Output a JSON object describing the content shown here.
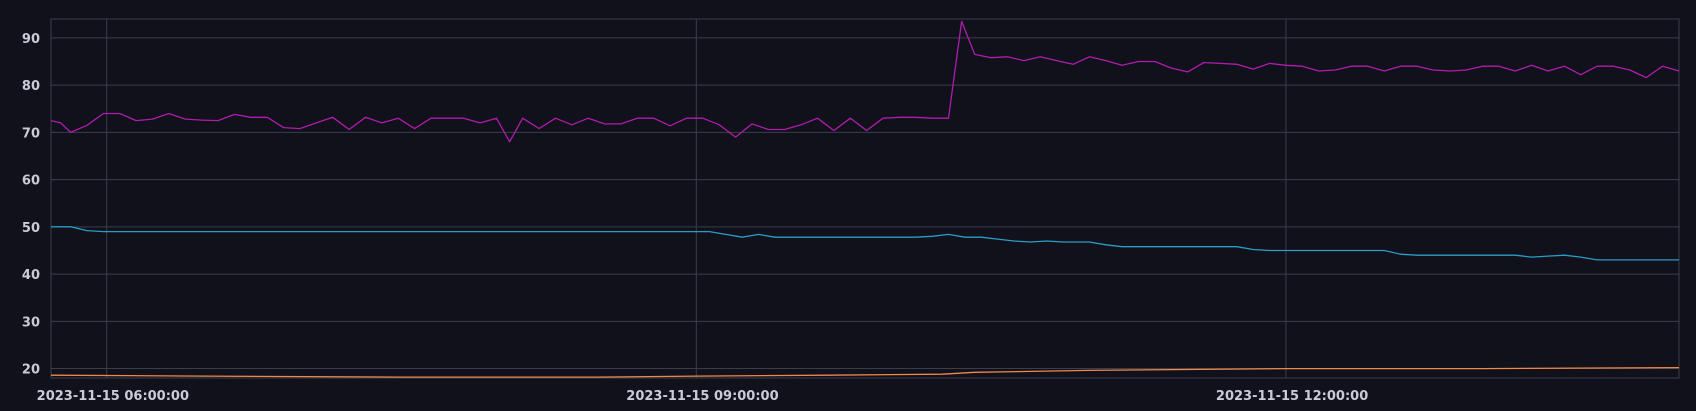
{
  "chart_data": {
    "type": "line",
    "title": "",
    "xlabel": "",
    "ylabel": "",
    "x_ticks": [
      "2023-11-15 06:00:00",
      "2023-11-15 09:00:00",
      "2023-11-15 12:00:00"
    ],
    "x_tick_times": [
      "2023-11-15T06:00:00",
      "2023-11-15T09:00:00",
      "2023-11-15T12:00:00"
    ],
    "x_range": [
      "2023-11-15T05:43:00",
      "2023-11-15T14:00:00"
    ],
    "y_ticks": [
      20,
      30,
      40,
      50,
      60,
      70,
      80,
      90
    ],
    "ylim": [
      18,
      94
    ],
    "grid": true,
    "legend": "none",
    "colors": [
      "#b01cae",
      "#2b9bc8",
      "#f0884a"
    ],
    "series": [
      {
        "color": "#b01cae",
        "points": [
          [
            "2023-11-15T05:43:00",
            72.5
          ],
          [
            "2023-11-15T05:46:00",
            72.0
          ],
          [
            "2023-11-15T05:49:00",
            70.0
          ],
          [
            "2023-11-15T05:54:00",
            71.5
          ],
          [
            "2023-11-15T05:59:00",
            74.0
          ],
          [
            "2023-11-15T06:04:00",
            74.0
          ],
          [
            "2023-11-15T06:09:00",
            72.5
          ],
          [
            "2023-11-15T06:14:00",
            72.8
          ],
          [
            "2023-11-15T06:19:00",
            74.0
          ],
          [
            "2023-11-15T06:24:00",
            72.8
          ],
          [
            "2023-11-15T06:29:00",
            72.6
          ],
          [
            "2023-11-15T06:34:00",
            72.5
          ],
          [
            "2023-11-15T06:39:00",
            73.8
          ],
          [
            "2023-11-15T06:44:00",
            73.2
          ],
          [
            "2023-11-15T06:49:00",
            73.2
          ],
          [
            "2023-11-15T06:54:00",
            71.0
          ],
          [
            "2023-11-15T06:59:00",
            70.8
          ],
          [
            "2023-11-15T07:04:00",
            72.0
          ],
          [
            "2023-11-15T07:09:00",
            73.2
          ],
          [
            "2023-11-15T07:14:00",
            70.6
          ],
          [
            "2023-11-15T07:19:00",
            73.2
          ],
          [
            "2023-11-15T07:24:00",
            72.0
          ],
          [
            "2023-11-15T07:29:00",
            73.0
          ],
          [
            "2023-11-15T07:34:00",
            70.8
          ],
          [
            "2023-11-15T07:39:00",
            73.0
          ],
          [
            "2023-11-15T07:44:00",
            73.0
          ],
          [
            "2023-11-15T07:49:00",
            73.0
          ],
          [
            "2023-11-15T07:54:00",
            72.0
          ],
          [
            "2023-11-15T07:59:00",
            73.0
          ],
          [
            "2023-11-15T08:03:00",
            68.0
          ],
          [
            "2023-11-15T08:07:00",
            73.0
          ],
          [
            "2023-11-15T08:12:00",
            70.8
          ],
          [
            "2023-11-15T08:17:00",
            73.0
          ],
          [
            "2023-11-15T08:22:00",
            71.6
          ],
          [
            "2023-11-15T08:27:00",
            73.0
          ],
          [
            "2023-11-15T08:32:00",
            71.8
          ],
          [
            "2023-11-15T08:37:00",
            71.8
          ],
          [
            "2023-11-15T08:42:00",
            73.0
          ],
          [
            "2023-11-15T08:47:00",
            73.0
          ],
          [
            "2023-11-15T08:52:00",
            71.4
          ],
          [
            "2023-11-15T08:57:00",
            73.0
          ],
          [
            "2023-11-15T09:02:00",
            73.0
          ],
          [
            "2023-11-15T09:07:00",
            71.6
          ],
          [
            "2023-11-15T09:12:00",
            69.0
          ],
          [
            "2023-11-15T09:17:00",
            71.8
          ],
          [
            "2023-11-15T09:22:00",
            70.6
          ],
          [
            "2023-11-15T09:27:00",
            70.6
          ],
          [
            "2023-11-15T09:32:00",
            71.6
          ],
          [
            "2023-11-15T09:37:00",
            73.0
          ],
          [
            "2023-11-15T09:42:00",
            70.4
          ],
          [
            "2023-11-15T09:47:00",
            73.0
          ],
          [
            "2023-11-15T09:52:00",
            70.4
          ],
          [
            "2023-11-15T09:57:00",
            73.0
          ],
          [
            "2023-11-15T10:02:00",
            73.2
          ],
          [
            "2023-11-15T10:07:00",
            73.2
          ],
          [
            "2023-11-15T10:12:00",
            73.0
          ],
          [
            "2023-11-15T10:17:00",
            73.0
          ],
          [
            "2023-11-15T10:21:00",
            93.5
          ],
          [
            "2023-11-15T10:25:00",
            86.5
          ],
          [
            "2023-11-15T10:30:00",
            85.8
          ],
          [
            "2023-11-15T10:35:00",
            86.0
          ],
          [
            "2023-11-15T10:40:00",
            85.2
          ],
          [
            "2023-11-15T10:45:00",
            86.0
          ],
          [
            "2023-11-15T10:50:00",
            85.2
          ],
          [
            "2023-11-15T10:55:00",
            84.4
          ],
          [
            "2023-11-15T11:00:00",
            86.0
          ],
          [
            "2023-11-15T11:05:00",
            85.2
          ],
          [
            "2023-11-15T11:10:00",
            84.2
          ],
          [
            "2023-11-15T11:15:00",
            85.0
          ],
          [
            "2023-11-15T11:20:00",
            85.0
          ],
          [
            "2023-11-15T11:25:00",
            83.6
          ],
          [
            "2023-11-15T11:30:00",
            82.8
          ],
          [
            "2023-11-15T11:35:00",
            84.8
          ],
          [
            "2023-11-15T11:40:00",
            84.6
          ],
          [
            "2023-11-15T11:45:00",
            84.4
          ],
          [
            "2023-11-15T11:50:00",
            83.4
          ],
          [
            "2023-11-15T11:55:00",
            84.6
          ],
          [
            "2023-11-15T12:00:00",
            84.2
          ],
          [
            "2023-11-15T12:05:00",
            84.0
          ],
          [
            "2023-11-15T12:10:00",
            83.0
          ],
          [
            "2023-11-15T12:15:00",
            83.2
          ],
          [
            "2023-11-15T12:20:00",
            84.0
          ],
          [
            "2023-11-15T12:25:00",
            84.0
          ],
          [
            "2023-11-15T12:30:00",
            83.0
          ],
          [
            "2023-11-15T12:35:00",
            84.0
          ],
          [
            "2023-11-15T12:40:00",
            84.0
          ],
          [
            "2023-11-15T12:45:00",
            83.2
          ],
          [
            "2023-11-15T12:50:00",
            83.0
          ],
          [
            "2023-11-15T12:55:00",
            83.2
          ],
          [
            "2023-11-15T13:00:00",
            84.0
          ],
          [
            "2023-11-15T13:05:00",
            84.0
          ],
          [
            "2023-11-15T13:10:00",
            83.0
          ],
          [
            "2023-11-15T13:15:00",
            84.2
          ],
          [
            "2023-11-15T13:20:00",
            83.0
          ],
          [
            "2023-11-15T13:25:00",
            84.0
          ],
          [
            "2023-11-15T13:30:00",
            82.2
          ],
          [
            "2023-11-15T13:35:00",
            84.0
          ],
          [
            "2023-11-15T13:40:00",
            84.0
          ],
          [
            "2023-11-15T13:45:00",
            83.2
          ],
          [
            "2023-11-15T13:50:00",
            81.6
          ],
          [
            "2023-11-15T13:55:00",
            84.0
          ],
          [
            "2023-11-15T14:00:00",
            83.0
          ]
        ]
      },
      {
        "color": "#2b9bc8",
        "points": [
          [
            "2023-11-15T05:43:00",
            50.0
          ],
          [
            "2023-11-15T05:49:00",
            50.0
          ],
          [
            "2023-11-15T05:54:00",
            49.2
          ],
          [
            "2023-11-15T05:59:00",
            49.0
          ],
          [
            "2023-11-15T07:00:00",
            49.0
          ],
          [
            "2023-11-15T08:00:00",
            49.0
          ],
          [
            "2023-11-15T09:00:00",
            49.0
          ],
          [
            "2023-11-15T09:04:00",
            49.0
          ],
          [
            "2023-11-15T09:09:00",
            48.4
          ],
          [
            "2023-11-15T09:14:00",
            47.8
          ],
          [
            "2023-11-15T09:19:00",
            48.4
          ],
          [
            "2023-11-15T09:24:00",
            47.8
          ],
          [
            "2023-11-15T10:07:00",
            47.8
          ],
          [
            "2023-11-15T10:12:00",
            48.0
          ],
          [
            "2023-11-15T10:17:00",
            48.4
          ],
          [
            "2023-11-15T10:22:00",
            47.8
          ],
          [
            "2023-11-15T10:27:00",
            47.8
          ],
          [
            "2023-11-15T10:32:00",
            47.4
          ],
          [
            "2023-11-15T10:37:00",
            47.0
          ],
          [
            "2023-11-15T10:42:00",
            46.8
          ],
          [
            "2023-11-15T10:47:00",
            47.0
          ],
          [
            "2023-11-15T10:52:00",
            46.8
          ],
          [
            "2023-11-15T11:00:00",
            46.8
          ],
          [
            "2023-11-15T11:05:00",
            46.2
          ],
          [
            "2023-11-15T11:10:00",
            45.8
          ],
          [
            "2023-11-15T11:40:00",
            45.8
          ],
          [
            "2023-11-15T11:45:00",
            45.8
          ],
          [
            "2023-11-15T11:50:00",
            45.2
          ],
          [
            "2023-11-15T11:55:00",
            45.0
          ],
          [
            "2023-11-15T12:30:00",
            45.0
          ],
          [
            "2023-11-15T12:35:00",
            44.2
          ],
          [
            "2023-11-15T12:40:00",
            44.0
          ],
          [
            "2023-11-15T13:10:00",
            44.0
          ],
          [
            "2023-11-15T13:15:00",
            43.6
          ],
          [
            "2023-11-15T13:20:00",
            43.8
          ],
          [
            "2023-11-15T13:25:00",
            44.0
          ],
          [
            "2023-11-15T13:30:00",
            43.6
          ],
          [
            "2023-11-15T13:35:00",
            43.0
          ],
          [
            "2023-11-15T14:00:00",
            43.0
          ]
        ]
      },
      {
        "color": "#f0884a",
        "points": [
          [
            "2023-11-15T05:43:00",
            18.6
          ],
          [
            "2023-11-15T06:30:00",
            18.4
          ],
          [
            "2023-11-15T07:30:00",
            18.2
          ],
          [
            "2023-11-15T08:30:00",
            18.2
          ],
          [
            "2023-11-15T09:00:00",
            18.4
          ],
          [
            "2023-11-15T09:40:00",
            18.6
          ],
          [
            "2023-11-15T10:15:00",
            18.8
          ],
          [
            "2023-11-15T10:25:00",
            19.2
          ],
          [
            "2023-11-15T11:00:00",
            19.6
          ],
          [
            "2023-11-15T12:00:00",
            20.0
          ],
          [
            "2023-11-15T13:00:00",
            20.0
          ],
          [
            "2023-11-15T14:00:00",
            20.2
          ]
        ]
      }
    ]
  }
}
